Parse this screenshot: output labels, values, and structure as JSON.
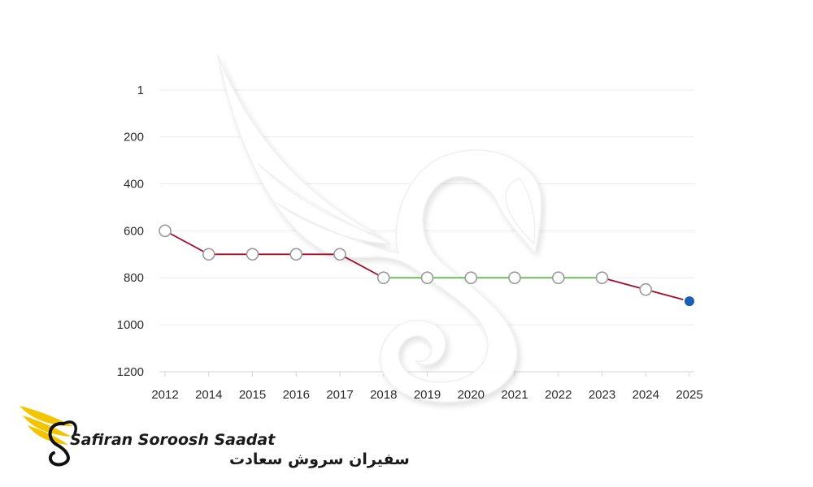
{
  "chart_data": {
    "type": "line",
    "title": "",
    "xlabel": "",
    "ylabel": "",
    "categories": [
      "2012",
      "2014",
      "2015",
      "2016",
      "2017",
      "2018",
      "2019",
      "2020",
      "2021",
      "2022",
      "2023",
      "2024",
      "2025"
    ],
    "values": [
      600,
      700,
      700,
      700,
      700,
      800,
      800,
      800,
      800,
      800,
      800,
      850,
      900
    ],
    "y_reversed": true,
    "ylim": [
      1,
      1200
    ],
    "y_ticks": [
      1,
      200,
      400,
      600,
      800,
      1000,
      1200
    ],
    "grid": true,
    "segment_colors": {
      "falling": "#a50b2b",
      "flat_unchanged": "#5ab946"
    },
    "marker_color": "#ffffff",
    "marker_stroke": "#9a9a9a",
    "last_marker_color": "#1a5fb4"
  },
  "logo": {
    "name_en": "Safiran Soroosh Saadat",
    "name_fa": "سفیران سروش سعادت",
    "accent_color": "#f2c500"
  },
  "watermark": {
    "icon": "winged-s-watermark-icon"
  }
}
